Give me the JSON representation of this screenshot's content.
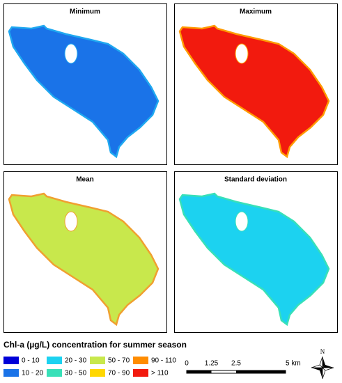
{
  "panels": [
    {
      "title": "Minimum",
      "fill": "#1a73e8",
      "edge": "#1fa8f0"
    },
    {
      "title": "Maximum",
      "fill": "#f21a0e",
      "edge": "#ff9a00"
    },
    {
      "title": "Mean",
      "fill": "#c8e84c",
      "edge": "#f0a030"
    },
    {
      "title": "Standard deviation",
      "fill": "#1cd2f0",
      "edge": "#38e0b8"
    }
  ],
  "legend": {
    "title": "Chl-a (µg/L) concentration for summer season",
    "items": [
      {
        "label": "0 - 10",
        "color": "#0000d8"
      },
      {
        "label": "10 - 20",
        "color": "#1a73e8"
      },
      {
        "label": "20 - 30",
        "color": "#1cd2f0"
      },
      {
        "label": "30 - 50",
        "color": "#38e0b8"
      },
      {
        "label": "50 - 70",
        "color": "#c8e84c"
      },
      {
        "label": "70 - 90",
        "color": "#ffd700"
      },
      {
        "label": "90 - 110",
        "color": "#ff8c00"
      },
      {
        "label": "> 110",
        "color": "#f21a0e"
      }
    ]
  },
  "scale_bar": {
    "labels": [
      "0",
      "1.25",
      "2.5",
      "5 km"
    ]
  },
  "north_arrow": {
    "label": "N"
  }
}
